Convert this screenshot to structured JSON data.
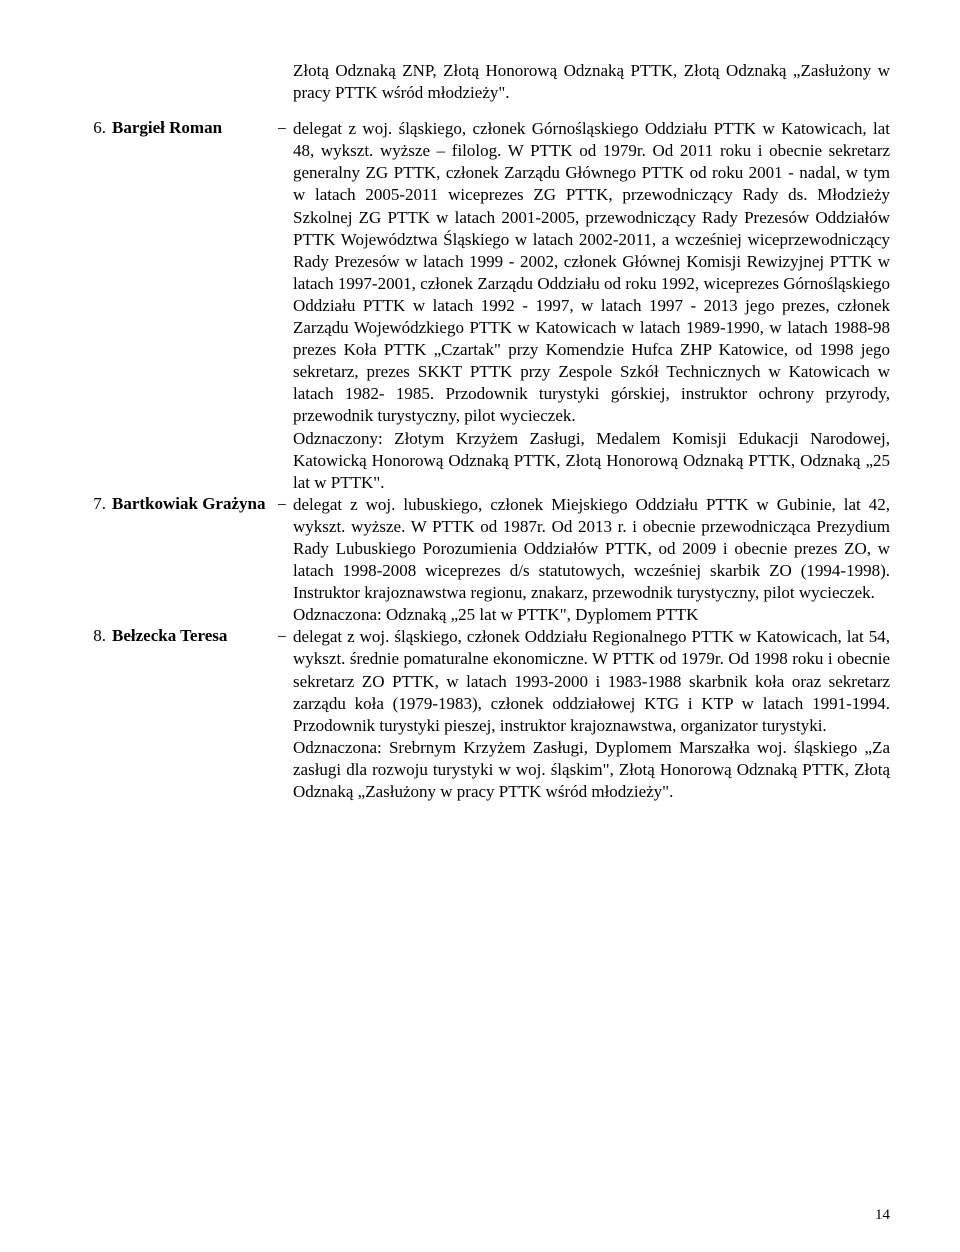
{
  "preceding_tail": "Złotą Odznaką ZNP, Złotą Honorową Odznaką PTTK, Złotą Odznaką „Zasłużony w pracy PTTK wśród młodzieży\".",
  "entries": [
    {
      "num": "6.",
      "name": "Bargieł Roman",
      "desc": "delegat z woj. śląskiego, członek Górnośląskiego Oddziału PTTK w Katowicach, lat 48, wykszt. wyższe – filolog. W PTTK od 1979r. Od 2011 roku i obecnie sekretarz generalny ZG PTTK, członek Zarządu Głównego PTTK od roku 2001 - nadal, w tym w latach 2005-2011 wiceprezes ZG PTTK, przewodniczący Rady ds. Młodzieży Szkolnej ZG PTTK w latach 2001-2005, przewodniczący Rady Prezesów Oddziałów PTTK Województwa Śląskiego w latach 2002-2011, a wcześniej wiceprzewodniczący Rady Prezesów w latach 1999 - 2002, członek Głównej Komisji Rewizyjnej PTTK w latach 1997-2001, członek Zarządu Oddziału od roku 1992, wiceprezes Górnośląskiego Oddziału PTTK w latach 1992 - 1997, w latach 1997 - 2013 jego prezes, członek Zarządu Wojewódzkiego PTTK w Katowicach w latach 1989-1990, w latach 1988-98 prezes Koła PTTK „Czartak\" przy Komendzie Hufca ZHP Katowice, od 1998 jego sekretarz, prezes SKKT PTTK przy Zespole Szkół Technicznych w Katowicach w latach 1982- 1985. Przodownik turystyki górskiej, instruktor ochrony przyrody, przewodnik turystyczny, pilot wycieczek.\nOdznaczony: Złotym Krzyżem Zasługi, Medalem Komisji Edukacji Narodowej, Katowicką Honorową Odznaką PTTK, Złotą Honorową Odznaką PTTK, Odznaką „25 lat w PTTK\"."
    },
    {
      "num": "7.",
      "name": "Bartkowiak Grażyna",
      "desc": "delegat z woj. lubuskiego, członek Miejskiego Oddziału PTTK w Gubinie, lat 42, wykszt. wyższe. W PTTK od 1987r. Od 2013 r. i obecnie przewodnicząca Prezydium Rady Lubuskiego Porozumienia Oddziałów PTTK, od 2009 i obecnie prezes ZO, w latach 1998-2008 wiceprezes d/s statutowych, wcześniej skarbik ZO (1994-1998). Instruktor krajoznawstwa regionu, znakarz, przewodnik turystyczny, pilot wycieczek.\nOdznaczona: Odznaką „25 lat w PTTK\", Dyplomem PTTK"
    },
    {
      "num": "8.",
      "name": "Bełzecka Teresa",
      "desc": "delegat z woj. śląskiego, członek Oddziału Regionalnego PTTK w Katowicach, lat 54, wykszt. średnie pomaturalne ekonomiczne. W PTTK od 1979r. Od 1998 roku i obecnie sekretarz ZO PTTK, w latach 1993-2000 i 1983-1988 skarbnik koła oraz sekretarz zarządu koła (1979-1983), członek oddziałowej KTG i KTP w latach 1991-1994. Przodownik turystyki pieszej, instruktor krajoznawstwa, organizator turystyki.\nOdznaczona: Srebrnym Krzyżem Zasługi, Dyplomem Marszałka woj. śląskiego „Za zasługi dla rozwoju turystyki w woj. śląskim\", Złotą Honorową Odznaką PTTK, Złotą Odznaką „Zasłużony w pracy PTTK wśród młodzieży\"."
    }
  ],
  "page_number": "14"
}
